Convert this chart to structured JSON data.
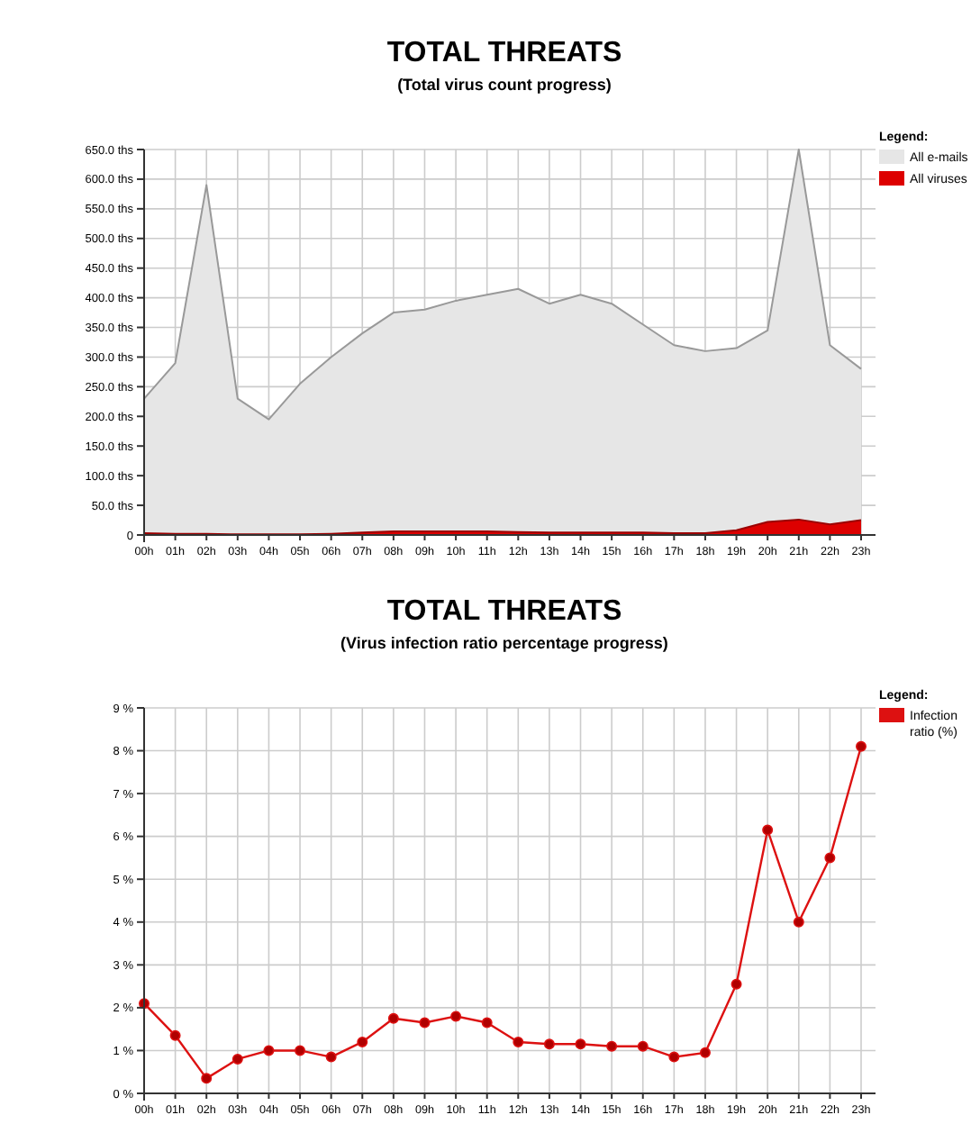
{
  "chart_data": [
    {
      "type": "area",
      "title": "TOTAL THREATS",
      "subtitle": "(Total virus count progress)",
      "categories": [
        "00h",
        "01h",
        "02h",
        "03h",
        "04h",
        "05h",
        "06h",
        "07h",
        "08h",
        "09h",
        "10h",
        "11h",
        "12h",
        "13h",
        "14h",
        "15h",
        "16h",
        "17h",
        "18h",
        "19h",
        "20h",
        "21h",
        "22h",
        "23h"
      ],
      "series": [
        {
          "name": "All e-mails",
          "color": "#e6e6e6",
          "values": [
            230,
            290,
            590,
            230,
            195,
            255,
            300,
            340,
            375,
            380,
            395,
            405,
            415,
            390,
            405,
            390,
            355,
            320,
            310,
            315,
            345,
            650,
            320,
            280
          ]
        },
        {
          "name": "All viruses",
          "color": "#dd0000",
          "values": [
            3,
            2,
            2,
            1,
            1,
            1,
            2,
            4,
            6,
            6,
            6,
            6,
            5,
            4,
            4,
            4,
            4,
            3,
            3,
            8,
            22,
            26,
            18,
            25
          ]
        }
      ],
      "ylim": [
        0,
        650
      ],
      "yticks": [
        {
          "value": 0,
          "label": "0"
        },
        {
          "value": 50,
          "label": "50.0 ths"
        },
        {
          "value": 100,
          "label": "100.0 ths"
        },
        {
          "value": 150,
          "label": "150.0 ths"
        },
        {
          "value": 200,
          "label": "200.0 ths"
        },
        {
          "value": 250,
          "label": "250.0 ths"
        },
        {
          "value": 300,
          "label": "300.0 ths"
        },
        {
          "value": 350,
          "label": "350.0 ths"
        },
        {
          "value": 400,
          "label": "400.0 ths"
        },
        {
          "value": 450,
          "label": "450.0 ths"
        },
        {
          "value": 500,
          "label": "500.0 ths"
        },
        {
          "value": 550,
          "label": "550.0 ths"
        },
        {
          "value": 600,
          "label": "600.0 ths"
        },
        {
          "value": 650,
          "label": "650.0 ths"
        }
      ],
      "grid": true,
      "legend": "top right",
      "legend_title": "Legend:"
    },
    {
      "type": "line",
      "title": "TOTAL THREATS",
      "subtitle": "(Virus infection ratio percentage progress)",
      "categories": [
        "00h",
        "01h",
        "02h",
        "03h",
        "04h",
        "05h",
        "06h",
        "07h",
        "08h",
        "09h",
        "10h",
        "11h",
        "12h",
        "13h",
        "14h",
        "15h",
        "16h",
        "17h",
        "18h",
        "19h",
        "20h",
        "21h",
        "22h",
        "23h"
      ],
      "series": [
        {
          "name": "Infection ratio (%)",
          "color": "#dd1111",
          "values": [
            2.1,
            1.35,
            0.35,
            0.8,
            1.0,
            1.0,
            0.85,
            1.2,
            1.75,
            1.65,
            1.8,
            1.65,
            1.2,
            1.15,
            1.15,
            1.1,
            1.1,
            0.85,
            0.95,
            2.55,
            6.15,
            4.0,
            5.5,
            8.1
          ]
        }
      ],
      "ylim": [
        0,
        9
      ],
      "yticks": [
        {
          "value": 0,
          "label": "0 %"
        },
        {
          "value": 1,
          "label": "1 %"
        },
        {
          "value": 2,
          "label": "2 %"
        },
        {
          "value": 3,
          "label": "3 %"
        },
        {
          "value": 4,
          "label": "4 %"
        },
        {
          "value": 5,
          "label": "5 %"
        },
        {
          "value": 6,
          "label": "6 %"
        },
        {
          "value": 7,
          "label": "7 %"
        },
        {
          "value": 8,
          "label": "8 %"
        },
        {
          "value": 9,
          "label": "9 %"
        }
      ],
      "grid": true,
      "legend": "top right",
      "legend_title": "Legend:",
      "marker": "circle"
    }
  ]
}
